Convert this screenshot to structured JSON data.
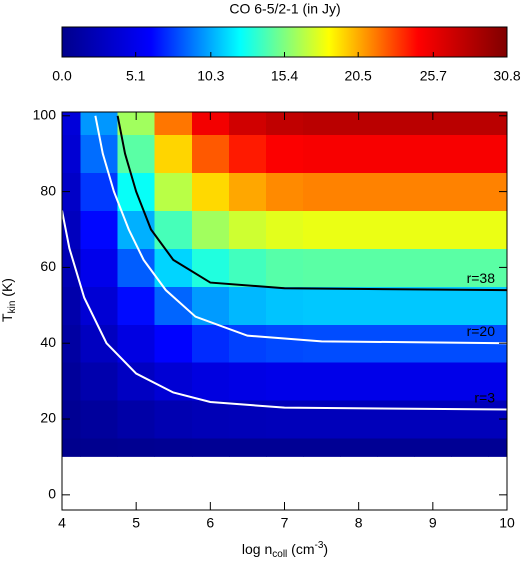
{
  "chart_data": {
    "type": "contour",
    "title": "CO 6-5/2-1 (in Jy)",
    "xlabel": {
      "main": "log n",
      "sub": "coll",
      "open": " (cm",
      "sup": "-3",
      "close": ")"
    },
    "ylabel": {
      "main": "T",
      "sub": "kin",
      "rest": " (K)"
    },
    "colormap": [
      "#00008b",
      "#0000ff",
      "#00ffff",
      "#ffff00",
      "#ff0000",
      "#800000"
    ],
    "zlim": [
      0,
      30.8
    ],
    "zticks": [
      {
        "value": 0,
        "label": "0.0"
      },
      5.1,
      10.3,
      15.4,
      20.5,
      25.7,
      30.8
    ],
    "xlim": [
      4,
      10
    ],
    "xticks": [
      4,
      5,
      6,
      7,
      8,
      9,
      10
    ],
    "ylim": [
      -4,
      101
    ],
    "yticks": [
      0,
      20,
      40,
      60,
      80,
      100
    ],
    "x": [
      4,
      4.5,
      5,
      5.5,
      6,
      6.5,
      7,
      7.5,
      8,
      8.5,
      9,
      9.5,
      10
    ],
    "y": [
      10,
      20,
      30,
      40,
      50,
      60,
      70,
      80,
      90,
      100
    ],
    "z": [
      [
        0.1,
        0.2,
        0.3,
        0.4,
        0.5,
        0.5,
        0.5,
        0.5,
        0.5,
        0.5,
        0.5,
        0.5,
        0.5
      ],
      [
        0.4,
        0.9,
        1.5,
        2,
        2.3,
        2.4,
        2.5,
        2.5,
        2.5,
        2.5,
        2.5,
        2.5,
        2.5
      ],
      [
        0.8,
        1.8,
        2.9,
        3.9,
        4.5,
        4.8,
        5,
        5,
        5,
        5,
        5,
        5,
        5
      ],
      [
        1.2,
        2.8,
        4.6,
        6.2,
        7.2,
        7.7,
        7.9,
        8,
        8,
        8,
        8,
        8,
        8
      ],
      [
        1.7,
        3.9,
        6.4,
        8.6,
        9.9,
        10.6,
        10.9,
        11,
        11,
        11,
        11,
        11,
        11
      ],
      [
        2.2,
        5.1,
        8.4,
        11.3,
        13.1,
        13.9,
        14.4,
        14.5,
        14.5,
        14.5,
        14.5,
        14.5,
        14.5
      ],
      [
        2.7,
        6.3,
        10.4,
        14,
        16.2,
        17.3,
        17.8,
        18,
        18,
        18,
        18,
        18,
        18
      ],
      [
        3.2,
        7.5,
        12.5,
        16.8,
        19.4,
        20.6,
        21.3,
        21.5,
        21.5,
        21.5,
        21.5,
        21.5,
        21.5
      ],
      [
        3.8,
        8.8,
        14.5,
        19.5,
        22.5,
        24,
        24.8,
        25,
        25,
        25,
        25,
        25,
        25
      ],
      [
        4.2,
        9.8,
        16.2,
        21.8,
        25.2,
        26.9,
        27.7,
        28,
        28,
        28,
        28,
        28,
        28
      ]
    ],
    "contours": [
      {
        "name": "r=38",
        "color": "#000000",
        "x": [
          4.75,
          4.85,
          5,
          5.2,
          5.5,
          6,
          7,
          10
        ],
        "values": [
          100,
          90,
          80,
          70,
          62,
          56,
          54.5,
          54
        ]
      },
      {
        "name": "r=20",
        "color": "#ffffff",
        "x": [
          4.45,
          4.55,
          4.7,
          4.9,
          5.1,
          5.4,
          5.8,
          6.5,
          7.5,
          10
        ],
        "values": [
          100,
          90,
          80,
          70,
          62,
          54,
          47,
          42,
          40.5,
          40
        ]
      },
      {
        "name": "r=3",
        "color": "#ffffff",
        "x": [
          4,
          4.1,
          4.3,
          4.6,
          5,
          5.5,
          6,
          7,
          10
        ],
        "values": [
          75,
          65,
          52,
          40,
          32,
          27,
          24.5,
          23,
          22.5
        ]
      }
    ]
  }
}
